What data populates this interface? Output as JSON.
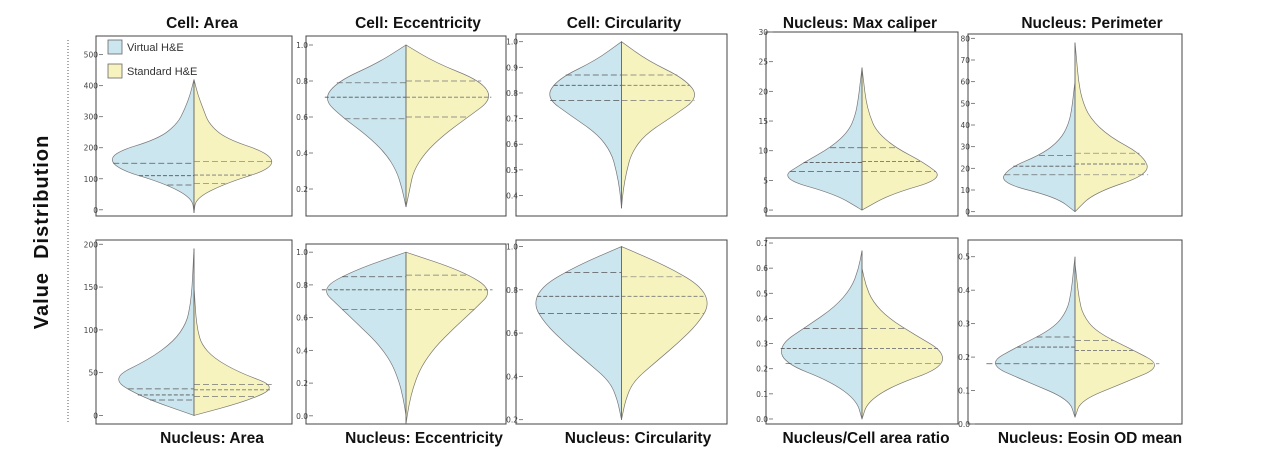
{
  "figure": {
    "ylabel": "Value  Distribution",
    "legend": {
      "placement": "top-left of first panel",
      "entries": [
        {
          "name": "Virtual H&E",
          "color": "#cce6f0"
        },
        {
          "name": "Standard H&E",
          "color": "#f7f3bf"
        }
      ]
    },
    "colors": {
      "virtual": "#cce6f0",
      "standard": "#f7f3bf",
      "outline": "#777777"
    }
  },
  "chart_data": [
    {
      "type": "split-violin",
      "title": "Cell: Area",
      "title_position": "top",
      "ylim": [
        -20,
        560
      ],
      "ticks": [
        0,
        100,
        200,
        300,
        400,
        500
      ],
      "range_virtual": [
        -10,
        420
      ],
      "range_standard": [
        -10,
        420
      ],
      "widths_virtual": [
        0,
        0.02,
        0.32,
        0.85,
        0.9,
        0.38,
        0.18,
        0.1,
        0.04,
        0
      ],
      "widths_standard": [
        0,
        0.02,
        0.34,
        0.85,
        0.82,
        0.34,
        0.16,
        0.1,
        0.04,
        0
      ],
      "quartiles_virtual": [
        80,
        110,
        150
      ],
      "quartiles_standard": [
        85,
        112,
        155
      ]
    },
    {
      "type": "split-violin",
      "title": "Cell: Eccentricity",
      "title_position": "top",
      "ylim": [
        0.05,
        1.05
      ],
      "ticks": [
        0.2,
        0.4,
        0.6,
        0.8,
        1.0
      ],
      "range_virtual": [
        0.1,
        1.0
      ],
      "range_standard": [
        0.1,
        1.0
      ],
      "widths_virtual": [
        0,
        0.04,
        0.1,
        0.22,
        0.42,
        0.68,
        0.88,
        0.72,
        0.3,
        0
      ],
      "widths_standard": [
        0,
        0.04,
        0.08,
        0.2,
        0.4,
        0.66,
        0.92,
        0.8,
        0.32,
        0
      ],
      "quartiles_virtual": [
        0.59,
        0.71,
        0.79
      ],
      "quartiles_standard": [
        0.6,
        0.71,
        0.8
      ]
    },
    {
      "type": "split-violin",
      "title": "Cell: Circularity",
      "title_position": "top",
      "ylim": [
        0.32,
        1.03
      ],
      "ticks": [
        0.4,
        0.5,
        0.6,
        0.7,
        0.8,
        0.9,
        1.0
      ],
      "range_virtual": [
        0.35,
        1.0
      ],
      "range_standard": [
        0.35,
        1.0
      ],
      "widths_virtual": [
        0,
        0.02,
        0.06,
        0.12,
        0.28,
        0.6,
        0.9,
        0.75,
        0.3,
        0
      ],
      "widths_standard": [
        0,
        0.02,
        0.06,
        0.12,
        0.28,
        0.62,
        0.92,
        0.75,
        0.3,
        0
      ],
      "quartiles_virtual": [
        0.77,
        0.83,
        0.87
      ],
      "quartiles_standard": [
        0.77,
        0.83,
        0.87
      ]
    },
    {
      "type": "split-violin",
      "title": "Nucleus: Max caliper",
      "title_position": "top",
      "ylim": [
        -1,
        30
      ],
      "ticks": [
        0,
        5,
        10,
        15,
        20,
        25,
        30
      ],
      "range_virtual": [
        0,
        24
      ],
      "range_standard": [
        0,
        24
      ],
      "widths_virtual": [
        0,
        0.28,
        0.88,
        0.62,
        0.32,
        0.14,
        0.07,
        0.04,
        0.02,
        0
      ],
      "widths_standard": [
        0,
        0.3,
        0.88,
        0.66,
        0.34,
        0.15,
        0.08,
        0.04,
        0.02,
        0
      ],
      "quartiles_virtual": [
        6.5,
        8,
        10.5
      ],
      "quartiles_standard": [
        6.5,
        8.2,
        10.5
      ]
    },
    {
      "type": "split-violin",
      "title": "Nucleus: Perimeter",
      "title_position": "top",
      "ylim": [
        -2,
        82
      ],
      "ticks": [
        0,
        10,
        20,
        30,
        40,
        50,
        60,
        70,
        80
      ],
      "range_virtual": [
        0,
        60
      ],
      "range_standard": [
        0,
        78
      ],
      "widths_virtual": [
        0,
        0.22,
        0.88,
        0.78,
        0.38,
        0.17,
        0.08,
        0.04,
        0.02,
        0
      ],
      "widths_standard": [
        0,
        0.22,
        0.88,
        0.8,
        0.4,
        0.17,
        0.08,
        0.04,
        0.02,
        0
      ],
      "quartiles_virtual": [
        17,
        21,
        26
      ],
      "quartiles_standard": [
        17,
        22,
        27
      ]
    },
    {
      "type": "split-violin",
      "title": "Nucleus: Area",
      "title_position": "bottom",
      "ylim": [
        -10,
        205
      ],
      "ticks": [
        0,
        50,
        100,
        150,
        200
      ],
      "range_virtual": [
        0,
        195
      ],
      "range_standard": [
        0,
        150
      ],
      "widths_virtual": [
        0,
        0.58,
        0.92,
        0.5,
        0.22,
        0.08,
        0.04,
        0.02,
        0.01,
        0
      ],
      "widths_standard": [
        0,
        0.58,
        0.92,
        0.5,
        0.22,
        0.08,
        0.04,
        0.02,
        0.01,
        0
      ],
      "quartiles_virtual": [
        18,
        24,
        31
      ],
      "quartiles_standard": [
        22,
        30,
        36
      ]
    },
    {
      "type": "split-violin",
      "title": "Nucleus: Eccentricity",
      "title_position": "bottom",
      "ylim": [
        -0.05,
        1.05
      ],
      "ticks": [
        0.0,
        0.2,
        0.4,
        0.6,
        0.8,
        1.0
      ],
      "range_virtual": [
        0.0,
        1.0
      ],
      "range_standard": [
        -0.05,
        1.0
      ],
      "widths_virtual": [
        0,
        0.03,
        0.08,
        0.16,
        0.3,
        0.5,
        0.7,
        0.9,
        0.55,
        0
      ],
      "widths_standard": [
        0,
        0.03,
        0.08,
        0.16,
        0.3,
        0.5,
        0.72,
        0.92,
        0.6,
        0
      ],
      "quartiles_virtual": [
        0.65,
        0.77,
        0.85
      ],
      "quartiles_standard": [
        0.65,
        0.77,
        0.86
      ]
    },
    {
      "type": "split-violin",
      "title": "Nucleus: Circularity",
      "title_position": "bottom",
      "ylim": [
        0.18,
        1.03
      ],
      "ticks": [
        0.2,
        0.4,
        0.6,
        0.8,
        1.0
      ],
      "range_virtual": [
        0.2,
        1.0
      ],
      "range_standard": [
        0.2,
        1.0
      ],
      "widths_virtual": [
        0,
        0.04,
        0.12,
        0.35,
        0.58,
        0.78,
        0.9,
        0.8,
        0.45,
        0
      ],
      "widths_standard": [
        0,
        0.04,
        0.12,
        0.35,
        0.58,
        0.78,
        0.9,
        0.8,
        0.45,
        0
      ],
      "quartiles_virtual": [
        0.69,
        0.77,
        0.88
      ],
      "quartiles_standard": [
        0.69,
        0.77,
        0.86
      ]
    },
    {
      "type": "split-violin",
      "title": "Nucleus/Cell area ratio",
      "title_position": "bottom",
      "ylim": [
        -0.02,
        0.72
      ],
      "ticks": [
        0.0,
        0.1,
        0.2,
        0.3,
        0.4,
        0.5,
        0.6,
        0.7
      ],
      "range_virtual": [
        0.0,
        0.67
      ],
      "range_standard": [
        0.0,
        0.6
      ],
      "widths_virtual": [
        0,
        0.06,
        0.35,
        0.88,
        0.92,
        0.6,
        0.3,
        0.12,
        0.04,
        0
      ],
      "widths_standard": [
        0,
        0.06,
        0.35,
        0.88,
        0.92,
        0.6,
        0.3,
        0.12,
        0.04,
        0
      ],
      "quartiles_virtual": [
        0.22,
        0.28,
        0.36
      ],
      "quartiles_standard": [
        0.22,
        0.28,
        0.36
      ]
    },
    {
      "type": "split-violin",
      "title": "Nucleus: Eosin OD mean",
      "title_position": "bottom",
      "ylim": [
        0,
        0.55
      ],
      "ticks": [
        0.0,
        0.1,
        0.2,
        0.3,
        0.4,
        0.5
      ],
      "range_virtual": [
        0.02,
        0.5
      ],
      "range_standard": [
        0.02,
        0.48
      ],
      "widths_virtual": [
        0,
        0.06,
        0.5,
        0.92,
        0.58,
        0.22,
        0.08,
        0.04,
        0.02,
        0
      ],
      "widths_standard": [
        0,
        0.06,
        0.5,
        0.92,
        0.58,
        0.22,
        0.08,
        0.04,
        0.02,
        0
      ],
      "quartiles_virtual": [
        0.18,
        0.23,
        0.26
      ],
      "quartiles_standard": [
        0.18,
        0.22,
        0.25
      ]
    }
  ]
}
